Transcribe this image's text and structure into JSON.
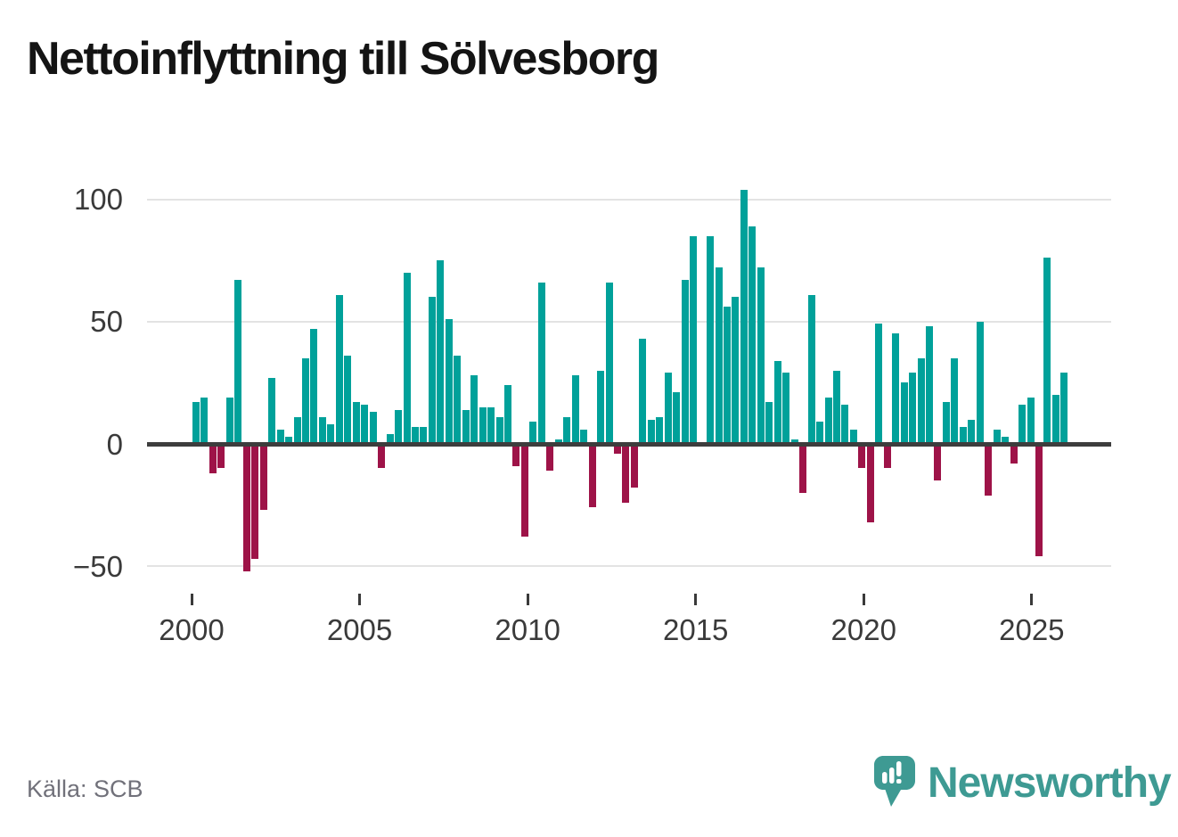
{
  "title": "Nettoinflyttning till Sölvesborg",
  "source": {
    "label": "Källa: SCB"
  },
  "branding": {
    "name": "Newsworthy",
    "logo_icon": "speech-bubble-bar-chart-icon",
    "color": "#3e9a93"
  },
  "colors": {
    "positive_bar": "#00a19a",
    "negative_bar": "#9e1348",
    "gridline": "#e3e3e3",
    "zero_axis": "#3d3d3d",
    "axis_text": "#3a3a3a",
    "title_text": "#141414",
    "source_text": "#71717a"
  },
  "y_axis": {
    "ticks": [
      {
        "value": 100,
        "label": "100"
      },
      {
        "value": 50,
        "label": "50"
      },
      {
        "value": 0,
        "label": "0"
      },
      {
        "value": -50,
        "label": "−50"
      }
    ]
  },
  "x_axis": {
    "ticks": [
      {
        "year": 2000,
        "label": "2000"
      },
      {
        "year": 2005,
        "label": "2005"
      },
      {
        "year": 2010,
        "label": "2010"
      },
      {
        "year": 2015,
        "label": "2015"
      },
      {
        "year": 2020,
        "label": "2020"
      },
      {
        "year": 2025,
        "label": "2025"
      }
    ]
  },
  "chart_data": {
    "type": "bar",
    "title": "Nettoinflyttning till Sölvesborg",
    "xlabel": "",
    "ylabel": "",
    "ylim": [
      -60,
      110
    ],
    "grid": "horizontal",
    "legend": "none",
    "x_unit": "quarter",
    "categories": [
      "2000 Q1",
      "2000 Q2",
      "2000 Q3",
      "2000 Q4",
      "2001 Q1",
      "2001 Q2",
      "2001 Q3",
      "2001 Q4",
      "2002 Q1",
      "2002 Q2",
      "2002 Q3",
      "2002 Q4",
      "2003 Q1",
      "2003 Q2",
      "2003 Q3",
      "2003 Q4",
      "2004 Q1",
      "2004 Q2",
      "2004 Q3",
      "2004 Q4",
      "2005 Q1",
      "2005 Q2",
      "2005 Q3",
      "2005 Q4",
      "2006 Q1",
      "2006 Q2",
      "2006 Q3",
      "2006 Q4",
      "2007 Q1",
      "2007 Q2",
      "2007 Q3",
      "2007 Q4",
      "2008 Q1",
      "2008 Q2",
      "2008 Q3",
      "2008 Q4",
      "2009 Q1",
      "2009 Q2",
      "2009 Q3",
      "2009 Q4",
      "2010 Q1",
      "2010 Q2",
      "2010 Q3",
      "2010 Q4",
      "2011 Q1",
      "2011 Q2",
      "2011 Q3",
      "2011 Q4",
      "2012 Q1",
      "2012 Q2",
      "2012 Q3",
      "2012 Q4",
      "2013 Q1",
      "2013 Q2",
      "2013 Q3",
      "2013 Q4",
      "2014 Q1",
      "2014 Q2",
      "2014 Q3",
      "2014 Q4",
      "2015 Q1",
      "2015 Q2",
      "2015 Q3",
      "2015 Q4",
      "2016 Q1",
      "2016 Q2",
      "2016 Q3",
      "2016 Q4",
      "2017 Q1",
      "2017 Q2",
      "2017 Q3",
      "2017 Q4",
      "2018 Q1",
      "2018 Q2",
      "2018 Q3",
      "2018 Q4",
      "2019 Q1",
      "2019 Q2",
      "2019 Q3",
      "2019 Q4",
      "2020 Q1",
      "2020 Q2",
      "2020 Q3",
      "2020 Q4",
      "2021 Q1",
      "2021 Q2",
      "2021 Q3",
      "2021 Q4",
      "2022 Q1",
      "2022 Q2",
      "2022 Q3",
      "2022 Q4",
      "2023 Q1",
      "2023 Q2",
      "2023 Q3",
      "2023 Q4",
      "2024 Q1",
      "2024 Q2",
      "2024 Q3",
      "2024 Q4",
      "2025 Q1",
      "2025 Q2",
      "2025 Q3",
      "2025 Q4"
    ],
    "values": [
      17,
      19,
      -12,
      -10,
      19,
      67,
      -52,
      -47,
      -27,
      27,
      6,
      3,
      11,
      35,
      47,
      11,
      8,
      61,
      36,
      17,
      16,
      13,
      -10,
      4,
      14,
      70,
      7,
      7,
      60,
      75,
      51,
      36,
      14,
      28,
      15,
      15,
      11,
      24,
      -9,
      -38,
      9,
      66,
      -11,
      2,
      11,
      28,
      6,
      -26,
      30,
      66,
      -4,
      -24,
      -18,
      43,
      10,
      11,
      29,
      21,
      67,
      85,
      0,
      85,
      72,
      56,
      60,
      104,
      89,
      72,
      17,
      34,
      29,
      2,
      -20,
      61,
      9,
      19,
      30,
      16,
      6,
      -10,
      -32,
      49,
      -10,
      45,
      25,
      29,
      35,
      48,
      -15,
      17,
      35,
      7,
      10,
      50,
      -21,
      6,
      3,
      -8,
      16,
      19,
      -46,
      76,
      20,
      29
    ]
  }
}
